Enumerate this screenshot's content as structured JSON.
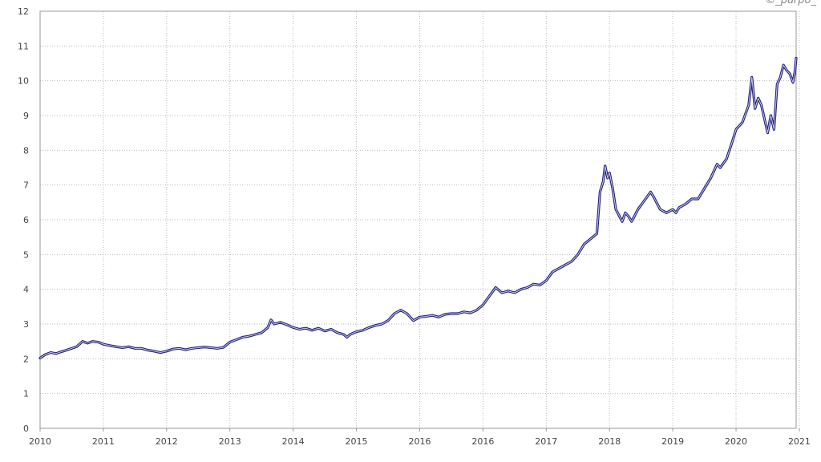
{
  "watermark": "©_parpo_",
  "chart_data": {
    "type": "line",
    "title": "",
    "xlabel": "",
    "ylabel": "",
    "xlim": [
      2010.0,
      2021.95
    ],
    "ylim": [
      0,
      12
    ],
    "grid": true,
    "grid_style": "dotted",
    "y_ticks": [
      0,
      1,
      2,
      3,
      4,
      5,
      6,
      7,
      8,
      9,
      10,
      11,
      12
    ],
    "x_tick_labels": [
      "2010",
      "2011",
      "2012",
      "2013",
      "2014",
      "2015",
      "2016",
      "2016",
      "2017",
      "2018",
      "2019",
      "2020",
      "2021"
    ],
    "series": [
      {
        "color": "#23237a",
        "points": [
          [
            2010.0,
            2.02
          ],
          [
            2010.08,
            2.12
          ],
          [
            2010.17,
            2.18
          ],
          [
            2010.25,
            2.15
          ],
          [
            2010.33,
            2.2
          ],
          [
            2010.42,
            2.25
          ],
          [
            2010.5,
            2.3
          ],
          [
            2010.58,
            2.35
          ],
          [
            2010.67,
            2.5
          ],
          [
            2010.75,
            2.45
          ],
          [
            2010.83,
            2.5
          ],
          [
            2010.92,
            2.48
          ],
          [
            2011.0,
            2.42
          ],
          [
            2011.1,
            2.38
          ],
          [
            2011.2,
            2.35
          ],
          [
            2011.3,
            2.32
          ],
          [
            2011.4,
            2.35
          ],
          [
            2011.5,
            2.3
          ],
          [
            2011.6,
            2.3
          ],
          [
            2011.7,
            2.25
          ],
          [
            2011.8,
            2.22
          ],
          [
            2011.9,
            2.18
          ],
          [
            2012.0,
            2.22
          ],
          [
            2012.1,
            2.28
          ],
          [
            2012.2,
            2.3
          ],
          [
            2012.3,
            2.26
          ],
          [
            2012.4,
            2.3
          ],
          [
            2012.5,
            2.32
          ],
          [
            2012.6,
            2.34
          ],
          [
            2012.7,
            2.32
          ],
          [
            2012.8,
            2.3
          ],
          [
            2012.9,
            2.33
          ],
          [
            2013.0,
            2.48
          ],
          [
            2013.1,
            2.55
          ],
          [
            2013.2,
            2.62
          ],
          [
            2013.3,
            2.65
          ],
          [
            2013.4,
            2.7
          ],
          [
            2013.5,
            2.75
          ],
          [
            2013.6,
            2.9
          ],
          [
            2013.65,
            3.12
          ],
          [
            2013.7,
            3.0
          ],
          [
            2013.8,
            3.05
          ],
          [
            2013.9,
            2.98
          ],
          [
            2014.0,
            2.9
          ],
          [
            2014.1,
            2.85
          ],
          [
            2014.2,
            2.88
          ],
          [
            2014.3,
            2.82
          ],
          [
            2014.4,
            2.88
          ],
          [
            2014.5,
            2.8
          ],
          [
            2014.6,
            2.85
          ],
          [
            2014.7,
            2.75
          ],
          [
            2014.8,
            2.7
          ],
          [
            2014.85,
            2.62
          ],
          [
            2014.9,
            2.7
          ],
          [
            2015.0,
            2.78
          ],
          [
            2015.1,
            2.82
          ],
          [
            2015.2,
            2.9
          ],
          [
            2015.3,
            2.96
          ],
          [
            2015.4,
            3.0
          ],
          [
            2015.5,
            3.1
          ],
          [
            2015.6,
            3.3
          ],
          [
            2015.7,
            3.4
          ],
          [
            2015.8,
            3.3
          ],
          [
            2015.9,
            3.1
          ],
          [
            2016.0,
            3.2
          ],
          [
            2016.1,
            3.22
          ],
          [
            2016.2,
            3.25
          ],
          [
            2016.3,
            3.2
          ],
          [
            2016.4,
            3.28
          ],
          [
            2016.5,
            3.3
          ],
          [
            2016.6,
            3.3
          ],
          [
            2016.7,
            3.35
          ],
          [
            2016.8,
            3.32
          ],
          [
            2016.9,
            3.4
          ],
          [
            2017.0,
            3.55
          ],
          [
            2017.1,
            3.8
          ],
          [
            2017.2,
            4.05
          ],
          [
            2017.3,
            3.9
          ],
          [
            2017.4,
            3.95
          ],
          [
            2017.5,
            3.9
          ],
          [
            2017.6,
            4.0
          ],
          [
            2017.7,
            4.05
          ],
          [
            2017.8,
            4.15
          ],
          [
            2017.9,
            4.12
          ],
          [
            2018.0,
            4.25
          ],
          [
            2018.1,
            4.5
          ],
          [
            2018.2,
            4.6
          ],
          [
            2018.3,
            4.7
          ],
          [
            2018.4,
            4.8
          ],
          [
            2018.5,
            5.0
          ],
          [
            2018.6,
            5.3
          ],
          [
            2018.7,
            5.45
          ],
          [
            2018.8,
            5.6
          ],
          [
            2018.85,
            6.8
          ],
          [
            2018.9,
            7.1
          ],
          [
            2018.93,
            7.55
          ],
          [
            2018.97,
            7.2
          ],
          [
            2019.0,
            7.35
          ],
          [
            2019.05,
            6.9
          ],
          [
            2019.1,
            6.3
          ],
          [
            2019.2,
            5.95
          ],
          [
            2019.25,
            6.2
          ],
          [
            2019.3,
            6.1
          ],
          [
            2019.35,
            5.95
          ],
          [
            2019.45,
            6.3
          ],
          [
            2019.55,
            6.55
          ],
          [
            2019.65,
            6.8
          ],
          [
            2019.7,
            6.65
          ],
          [
            2019.8,
            6.3
          ],
          [
            2019.9,
            6.2
          ],
          [
            2020.0,
            6.3
          ],
          [
            2020.05,
            6.2
          ],
          [
            2020.1,
            6.35
          ],
          [
            2020.2,
            6.45
          ],
          [
            2020.3,
            6.6
          ],
          [
            2020.4,
            6.6
          ],
          [
            2020.5,
            6.9
          ],
          [
            2020.6,
            7.2
          ],
          [
            2020.7,
            7.6
          ],
          [
            2020.75,
            7.5
          ],
          [
            2020.85,
            7.75
          ],
          [
            2020.95,
            8.3
          ],
          [
            2021.0,
            8.6
          ],
          [
            2021.1,
            8.8
          ],
          [
            2021.2,
            9.3
          ],
          [
            2021.25,
            10.1
          ],
          [
            2021.3,
            9.2
          ],
          [
            2021.35,
            9.5
          ],
          [
            2021.4,
            9.3
          ],
          [
            2021.45,
            8.9
          ],
          [
            2021.5,
            8.5
          ],
          [
            2021.55,
            9.0
          ],
          [
            2021.6,
            8.6
          ],
          [
            2021.65,
            9.9
          ],
          [
            2021.7,
            10.1
          ],
          [
            2021.75,
            10.45
          ],
          [
            2021.8,
            10.3
          ],
          [
            2021.85,
            10.2
          ],
          [
            2021.9,
            9.95
          ],
          [
            2021.93,
            10.25
          ],
          [
            2021.95,
            10.65
          ]
        ]
      }
    ]
  }
}
